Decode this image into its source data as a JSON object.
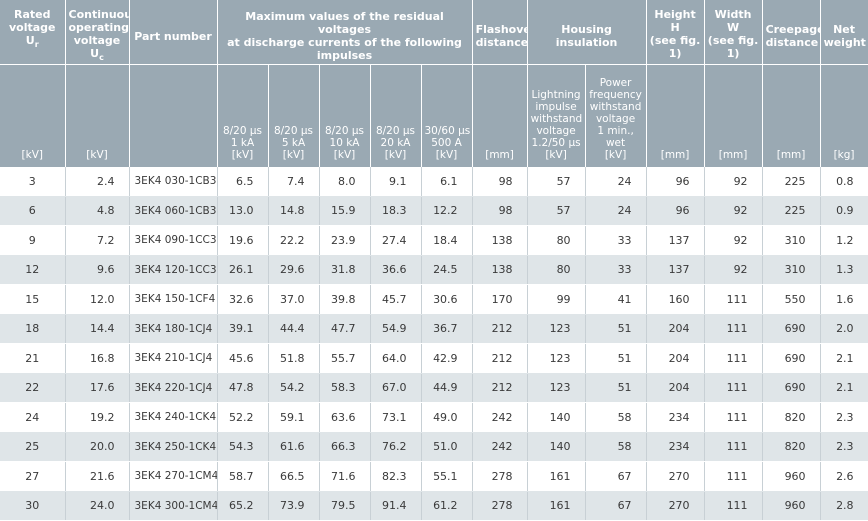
{
  "headers": {
    "rated_voltage": "Rated voltage U",
    "rated_voltage_sub": "r",
    "cont_voltage": "Continuous operating voltage U",
    "cont_voltage_sub": "c",
    "part_number": "Part number",
    "residual": "Maximum values of the residual voltages at discharge currents of the following impulses",
    "flashover": "Flashover distance",
    "housing": "Housing insulation",
    "height": "Height H (see fig. 1)",
    "width": "Width W (see fig. 1)",
    "creepage": "Creepage distance",
    "net_weight": "Net weight"
  },
  "subheaders": {
    "r1": "8/20 µs",
    "r1b": "1 kA",
    "r2": "8/20 µs",
    "r2b": "5 kA",
    "r3": "8/20 µs",
    "r3b": "10 kA",
    "r4": "8/20 µs",
    "r4b": "20 kA",
    "r5": "30/60 µs",
    "r5b": "500 A",
    "lightning": "Lightning impulse withstand voltage 1.2/50 µs",
    "power": "Power frequency withstand voltage 1 min., wet"
  },
  "units": [
    "[kV]",
    "[kV]",
    "",
    "[kV]",
    "[kV]",
    "[kV]",
    "[kV]",
    "[kV]",
    "[mm]",
    "[kV]",
    "[kV]",
    "[mm]",
    "[mm]",
    "[mm]",
    "[kg]"
  ],
  "rows": [
    [
      "3",
      "2.4",
      "3EK4  030-1CB3",
      "6.5",
      "7.4",
      "8.0",
      "9.1",
      "6.1",
      "98",
      "57",
      "24",
      "96",
      "92",
      "225",
      "0.8"
    ],
    [
      "6",
      "4.8",
      "3EK4  060-1CB3",
      "13.0",
      "14.8",
      "15.9",
      "18.3",
      "12.2",
      "98",
      "57",
      "24",
      "96",
      "92",
      "225",
      "0.9"
    ],
    [
      "9",
      "7.2",
      "3EK4  090-1CC3",
      "19.6",
      "22.2",
      "23.9",
      "27.4",
      "18.4",
      "138",
      "80",
      "33",
      "137",
      "92",
      "310",
      "1.2"
    ],
    [
      "12",
      "9.6",
      "3EK4  120-1CC3",
      "26.1",
      "29.6",
      "31.8",
      "36.6",
      "24.5",
      "138",
      "80",
      "33",
      "137",
      "92",
      "310",
      "1.3"
    ],
    [
      "15",
      "12.0",
      "3EK4  150-1CF4",
      "32.6",
      "37.0",
      "39.8",
      "45.7",
      "30.6",
      "170",
      "99",
      "41",
      "160",
      "111",
      "550",
      "1.6"
    ],
    [
      "18",
      "14.4",
      "3EK4  180-1CJ4",
      "39.1",
      "44.4",
      "47.7",
      "54.9",
      "36.7",
      "212",
      "123",
      "51",
      "204",
      "111",
      "690",
      "2.0"
    ],
    [
      "21",
      "16.8",
      "3EK4  210-1CJ4",
      "45.6",
      "51.8",
      "55.7",
      "64.0",
      "42.9",
      "212",
      "123",
      "51",
      "204",
      "111",
      "690",
      "2.1"
    ],
    [
      "22",
      "17.6",
      "3EK4  220-1CJ4",
      "47.8",
      "54.2",
      "58.3",
      "67.0",
      "44.9",
      "212",
      "123",
      "51",
      "204",
      "111",
      "690",
      "2.1"
    ],
    [
      "24",
      "19.2",
      "3EK4  240-1CK4",
      "52.2",
      "59.1",
      "63.6",
      "73.1",
      "49.0",
      "242",
      "140",
      "58",
      "234",
      "111",
      "820",
      "2.3"
    ],
    [
      "25",
      "20.0",
      "3EK4  250-1CK4",
      "54.3",
      "61.6",
      "66.3",
      "76.2",
      "51.0",
      "242",
      "140",
      "58",
      "234",
      "111",
      "820",
      "2.3"
    ],
    [
      "27",
      "21.6",
      "3EK4  270-1CM4",
      "58.7",
      "66.5",
      "71.6",
      "82.3",
      "55.1",
      "278",
      "161",
      "67",
      "270",
      "111",
      "960",
      "2.6"
    ],
    [
      "30",
      "24.0",
      "3EK4  300-1CM4",
      "65.2",
      "73.9",
      "79.5",
      "91.4",
      "61.2",
      "278",
      "161",
      "67",
      "270",
      "111",
      "960",
      "2.8"
    ]
  ]
}
